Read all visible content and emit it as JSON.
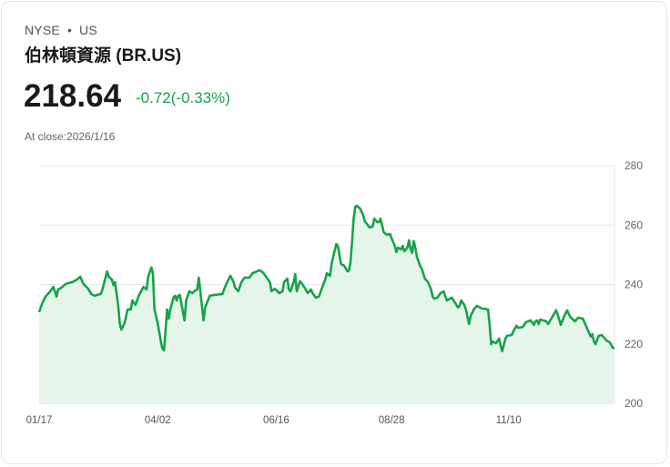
{
  "header": {
    "exchange": "NYSE",
    "separator": "•",
    "market": "US",
    "name": "伯林頓資源 (BR.US)"
  },
  "quote": {
    "price": "218.64",
    "change": "-0.72(-0.33%)",
    "close_label": "At close:2026/1/16"
  },
  "colors": {
    "line": "#16a34a",
    "fill": "#e6f5ea",
    "change": "#19a04b"
  },
  "chart_data": {
    "type": "area",
    "x_unit": "days since 2025/01/17",
    "xlim": [
      0,
      364
    ],
    "ylim": [
      200,
      280
    ],
    "yticks": [
      200,
      220,
      240,
      260,
      280
    ],
    "xticks": [
      {
        "day": 0,
        "label": "01/17"
      },
      {
        "day": 75,
        "label": "04/02"
      },
      {
        "day": 150,
        "label": "06/16"
      },
      {
        "day": 223,
        "label": "08/28"
      },
      {
        "day": 297,
        "label": "11/10"
      }
    ],
    "grid": true,
    "points": [
      [
        0,
        230.7
      ],
      [
        2,
        233.7
      ],
      [
        4,
        235.9
      ],
      [
        7,
        237.7
      ],
      [
        9,
        239.2
      ],
      [
        11,
        235.9
      ],
      [
        12,
        238.3
      ],
      [
        14,
        238.9
      ],
      [
        17,
        240.2
      ],
      [
        21,
        240.8
      ],
      [
        24,
        241.7
      ],
      [
        26,
        242.6
      ],
      [
        28,
        240.2
      ],
      [
        31,
        238.6
      ],
      [
        33,
        236.8
      ],
      [
        35,
        236.2
      ],
      [
        39,
        236.8
      ],
      [
        40,
        238.3
      ],
      [
        43,
        244.4
      ],
      [
        44,
        242.6
      ],
      [
        46,
        241.7
      ],
      [
        47,
        239.8
      ],
      [
        48,
        240.8
      ],
      [
        50,
        233.1
      ],
      [
        51,
        227.0
      ],
      [
        52,
        224.8
      ],
      [
        54,
        227.0
      ],
      [
        56,
        231.6
      ],
      [
        58,
        231.6
      ],
      [
        59,
        234.6
      ],
      [
        61,
        233.1
      ],
      [
        63,
        236.2
      ],
      [
        66,
        239.2
      ],
      [
        68,
        238.3
      ],
      [
        69,
        242.6
      ],
      [
        71,
        245.7
      ],
      [
        72,
        243.8
      ],
      [
        73,
        231.6
      ],
      [
        75,
        227.0
      ],
      [
        77,
        220.8
      ],
      [
        78,
        218.4
      ],
      [
        79,
        217.8
      ],
      [
        81,
        231.6
      ],
      [
        82,
        228.5
      ],
      [
        83,
        231.6
      ],
      [
        85,
        235.6
      ],
      [
        86,
        236.2
      ],
      [
        87,
        234.6
      ],
      [
        88,
        236.2
      ],
      [
        89,
        236.5
      ],
      [
        92,
        227.9
      ],
      [
        93,
        234.6
      ],
      [
        95,
        237.7
      ],
      [
        97,
        237.1
      ],
      [
        98,
        237.7
      ],
      [
        100,
        238.3
      ],
      [
        101,
        242.3
      ],
      [
        104,
        227.9
      ],
      [
        105,
        232.2
      ],
      [
        108,
        236.2
      ],
      [
        111,
        236.5
      ],
      [
        116,
        236.8
      ],
      [
        117,
        238.3
      ],
      [
        119,
        240.8
      ],
      [
        121,
        242.9
      ],
      [
        123,
        240.8
      ],
      [
        124,
        238.9
      ],
      [
        126,
        237.7
      ],
      [
        128,
        240.8
      ],
      [
        130,
        242.3
      ],
      [
        133,
        242.3
      ],
      [
        135,
        243.8
      ],
      [
        139,
        244.7
      ],
      [
        140,
        244.7
      ],
      [
        142,
        243.8
      ],
      [
        146,
        240.8
      ],
      [
        147,
        237.7
      ],
      [
        149,
        238.6
      ],
      [
        152,
        237.1
      ],
      [
        154,
        237.7
      ],
      [
        155,
        240.8
      ],
      [
        157,
        242.0
      ],
      [
        158,
        238.3
      ],
      [
        159,
        237.7
      ],
      [
        161,
        240.8
      ],
      [
        162,
        243.5
      ],
      [
        163,
        237.7
      ],
      [
        165,
        241.1
      ],
      [
        166,
        240.5
      ],
      [
        168,
        238.9
      ],
      [
        170,
        237.1
      ],
      [
        172,
        238.3
      ],
      [
        173,
        237.1
      ],
      [
        175,
        235.6
      ],
      [
        177,
        235.9
      ],
      [
        179,
        238.9
      ],
      [
        181,
        241.7
      ],
      [
        182,
        243.8
      ],
      [
        184,
        242.9
      ],
      [
        185,
        246.9
      ],
      [
        187,
        251.5
      ],
      [
        188,
        253.6
      ],
      [
        189,
        253.0
      ],
      [
        190,
        250.0
      ],
      [
        191,
        246.9
      ],
      [
        193,
        246.3
      ],
      [
        195,
        244.4
      ],
      [
        196,
        244.7
      ],
      [
        197,
        247.5
      ],
      [
        198,
        254.6
      ],
      [
        199,
        262.2
      ],
      [
        200,
        266.2
      ],
      [
        201,
        266.5
      ],
      [
        203,
        265.6
      ],
      [
        205,
        263.4
      ],
      [
        206,
        261.3
      ],
      [
        209,
        259.2
      ],
      [
        211,
        259.5
      ],
      [
        212,
        262.2
      ],
      [
        214,
        261.0
      ],
      [
        215,
        261.0
      ],
      [
        216,
        262.2
      ],
      [
        218,
        257.6
      ],
      [
        220,
        256.7
      ],
      [
        222,
        257.0
      ],
      [
        223,
        255.5
      ],
      [
        225,
        253.0
      ],
      [
        226,
        250.9
      ],
      [
        227,
        252.4
      ],
      [
        229,
        251.8
      ],
      [
        230,
        253.0
      ],
      [
        231,
        251.2
      ],
      [
        233,
        252.4
      ],
      [
        234,
        254.9
      ],
      [
        235,
        252.1
      ],
      [
        236,
        250.6
      ],
      [
        237,
        254.6
      ],
      [
        238,
        252.4
      ],
      [
        239,
        249.3
      ],
      [
        241,
        246.3
      ],
      [
        242,
        245.4
      ],
      [
        243,
        243.8
      ],
      [
        244,
        242.0
      ],
      [
        246,
        240.8
      ],
      [
        248,
        238.3
      ],
      [
        249,
        235.9
      ],
      [
        250,
        235.2
      ],
      [
        252,
        235.6
      ],
      [
        254,
        237.1
      ],
      [
        256,
        237.7
      ],
      [
        257,
        235.9
      ],
      [
        258,
        234.6
      ],
      [
        261,
        235.6
      ],
      [
        263,
        234.0
      ],
      [
        265,
        232.2
      ],
      [
        266,
        232.8
      ],
      [
        267,
        234.6
      ],
      [
        269,
        233.1
      ],
      [
        270,
        231.6
      ],
      [
        271,
        229.1
      ],
      [
        272,
        226.7
      ],
      [
        273,
        229.4
      ],
      [
        275,
        231.6
      ],
      [
        277,
        232.8
      ],
      [
        280,
        231.9
      ],
      [
        284,
        231.6
      ],
      [
        285,
        226.7
      ],
      [
        286,
        219.9
      ],
      [
        287,
        220.8
      ],
      [
        289,
        220.2
      ],
      [
        291,
        221.8
      ],
      [
        292,
        219.3
      ],
      [
        293,
        217.5
      ],
      [
        295,
        221.8
      ],
      [
        296,
        222.7
      ],
      [
        299,
        223.0
      ],
      [
        300,
        224.2
      ],
      [
        302,
        226.1
      ],
      [
        303,
        225.4
      ],
      [
        306,
        225.7
      ],
      [
        308,
        227.3
      ],
      [
        311,
        227.9
      ],
      [
        313,
        226.4
      ],
      [
        314,
        227.6
      ],
      [
        315,
        227.9
      ],
      [
        316,
        226.7
      ],
      [
        317,
        228.2
      ],
      [
        321,
        227.6
      ],
      [
        322,
        226.7
      ],
      [
        325,
        229.4
      ],
      [
        327,
        231.3
      ],
      [
        328,
        230.0
      ],
      [
        330,
        226.4
      ],
      [
        332,
        229.1
      ],
      [
        334,
        231.3
      ],
      [
        336,
        229.1
      ],
      [
        339,
        227.6
      ],
      [
        341,
        228.8
      ],
      [
        344,
        228.5
      ],
      [
        347,
        224.8
      ],
      [
        349,
        222.4
      ],
      [
        350,
        223.3
      ],
      [
        351,
        220.8
      ],
      [
        352,
        219.9
      ],
      [
        354,
        222.7
      ],
      [
        356,
        223.0
      ],
      [
        359,
        221.1
      ],
      [
        361,
        220.5
      ],
      [
        363,
        218.6
      ],
      [
        364,
        218.64
      ]
    ]
  }
}
